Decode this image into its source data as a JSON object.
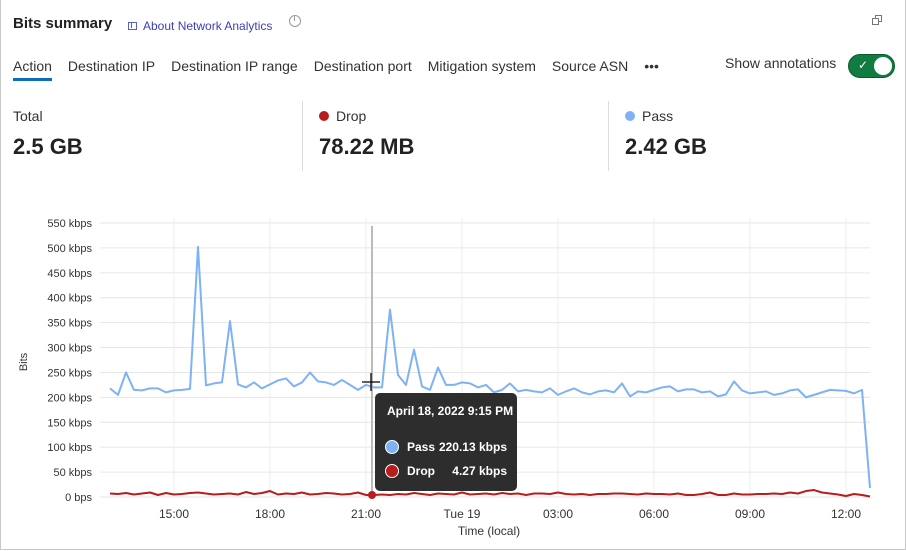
{
  "header": {
    "title": "Bits summary",
    "about_link": "About Network Analytics"
  },
  "tabs": [
    {
      "label": "Action",
      "active": true
    },
    {
      "label": "Destination IP"
    },
    {
      "label": "Destination IP range"
    },
    {
      "label": "Destination port"
    },
    {
      "label": "Mitigation system"
    },
    {
      "label": "Source ASN"
    },
    {
      "label": "•••"
    }
  ],
  "annotations": {
    "label": "Show annotations",
    "enabled": true,
    "check": "✓"
  },
  "stats": [
    {
      "label": "Total",
      "value": "2.5 GB"
    },
    {
      "label": "Drop",
      "value": "78.22 MB",
      "color": "#b91c1c"
    },
    {
      "label": "Pass",
      "value": "2.42 GB",
      "color": "#7fb2f5"
    }
  ],
  "tooltip": {
    "date": "April 18, 2022 9:15 PM",
    "rows": [
      {
        "name": "Pass",
        "value": "220.13 kbps",
        "color": "#7fb2f5"
      },
      {
        "name": "Drop",
        "value": "4.27 kbps",
        "color": "#b91c1c"
      }
    ]
  },
  "chart_data": {
    "type": "line",
    "ylabel": "Bits",
    "xlabel": "Time (local)",
    "ylim": [
      0,
      550
    ],
    "yunit": "kbps",
    "yticks": [
      "0 bps",
      "50 kbps",
      "100 kbps",
      "150 kbps",
      "200 kbps",
      "250 kbps",
      "300 kbps",
      "350 kbps",
      "400 kbps",
      "450 kbps",
      "500 kbps",
      "550 kbps"
    ],
    "xticks": [
      "15:00",
      "18:00",
      "21:00",
      "Tue 19",
      "03:00",
      "06:00",
      "09:00",
      "12:00"
    ],
    "x_range": [
      "2022-04-18 13:00",
      "2022-04-19 12:45"
    ],
    "x_interval": "15 min",
    "grid": true,
    "hover_time": "2022-04-18 21:15",
    "series": [
      {
        "name": "Pass",
        "color": "#7fb2f5",
        "values": [
          218,
          205,
          250,
          215,
          214,
          218,
          218,
          210,
          214,
          215,
          217,
          502,
          224,
          228,
          230,
          353,
          226,
          220,
          230,
          218,
          226,
          234,
          238,
          222,
          230,
          250,
          232,
          230,
          225,
          235,
          225,
          215,
          225,
          220,
          220,
          376,
          245,
          225,
          296,
          222,
          215,
          260,
          225,
          225,
          230,
          228,
          220,
          225,
          210,
          215,
          228,
          212,
          215,
          212,
          210,
          218,
          205,
          212,
          218,
          210,
          206,
          212,
          214,
          210,
          228,
          202,
          212,
          210,
          215,
          220,
          222,
          212,
          216,
          216,
          210,
          212,
          202,
          206,
          232,
          214,
          208,
          210,
          212,
          205,
          208,
          214,
          216,
          200,
          205,
          210,
          215,
          214,
          213,
          208,
          215,
          18
        ]
      },
      {
        "name": "Drop",
        "color": "#b91c1c",
        "values": [
          7,
          6,
          8,
          5,
          7,
          9,
          4,
          8,
          5,
          6,
          8,
          9,
          7,
          5,
          6,
          7,
          5,
          10,
          6,
          8,
          12,
          5,
          7,
          6,
          9,
          5,
          6,
          8,
          7,
          5,
          6,
          9,
          4,
          4,
          5,
          4,
          6,
          5,
          8,
          6,
          4,
          7,
          6,
          5,
          9,
          5,
          6,
          7,
          5,
          8,
          6,
          7,
          4,
          7,
          7,
          6,
          9,
          6,
          5,
          6,
          4,
          6,
          6,
          7,
          7,
          6,
          5,
          7,
          6,
          6,
          5,
          7,
          4,
          4,
          6,
          9,
          4,
          4,
          7,
          5,
          5,
          6,
          6,
          7,
          6,
          9,
          7,
          12,
          14,
          9,
          7,
          5,
          2,
          6,
          4,
          1
        ]
      }
    ]
  }
}
